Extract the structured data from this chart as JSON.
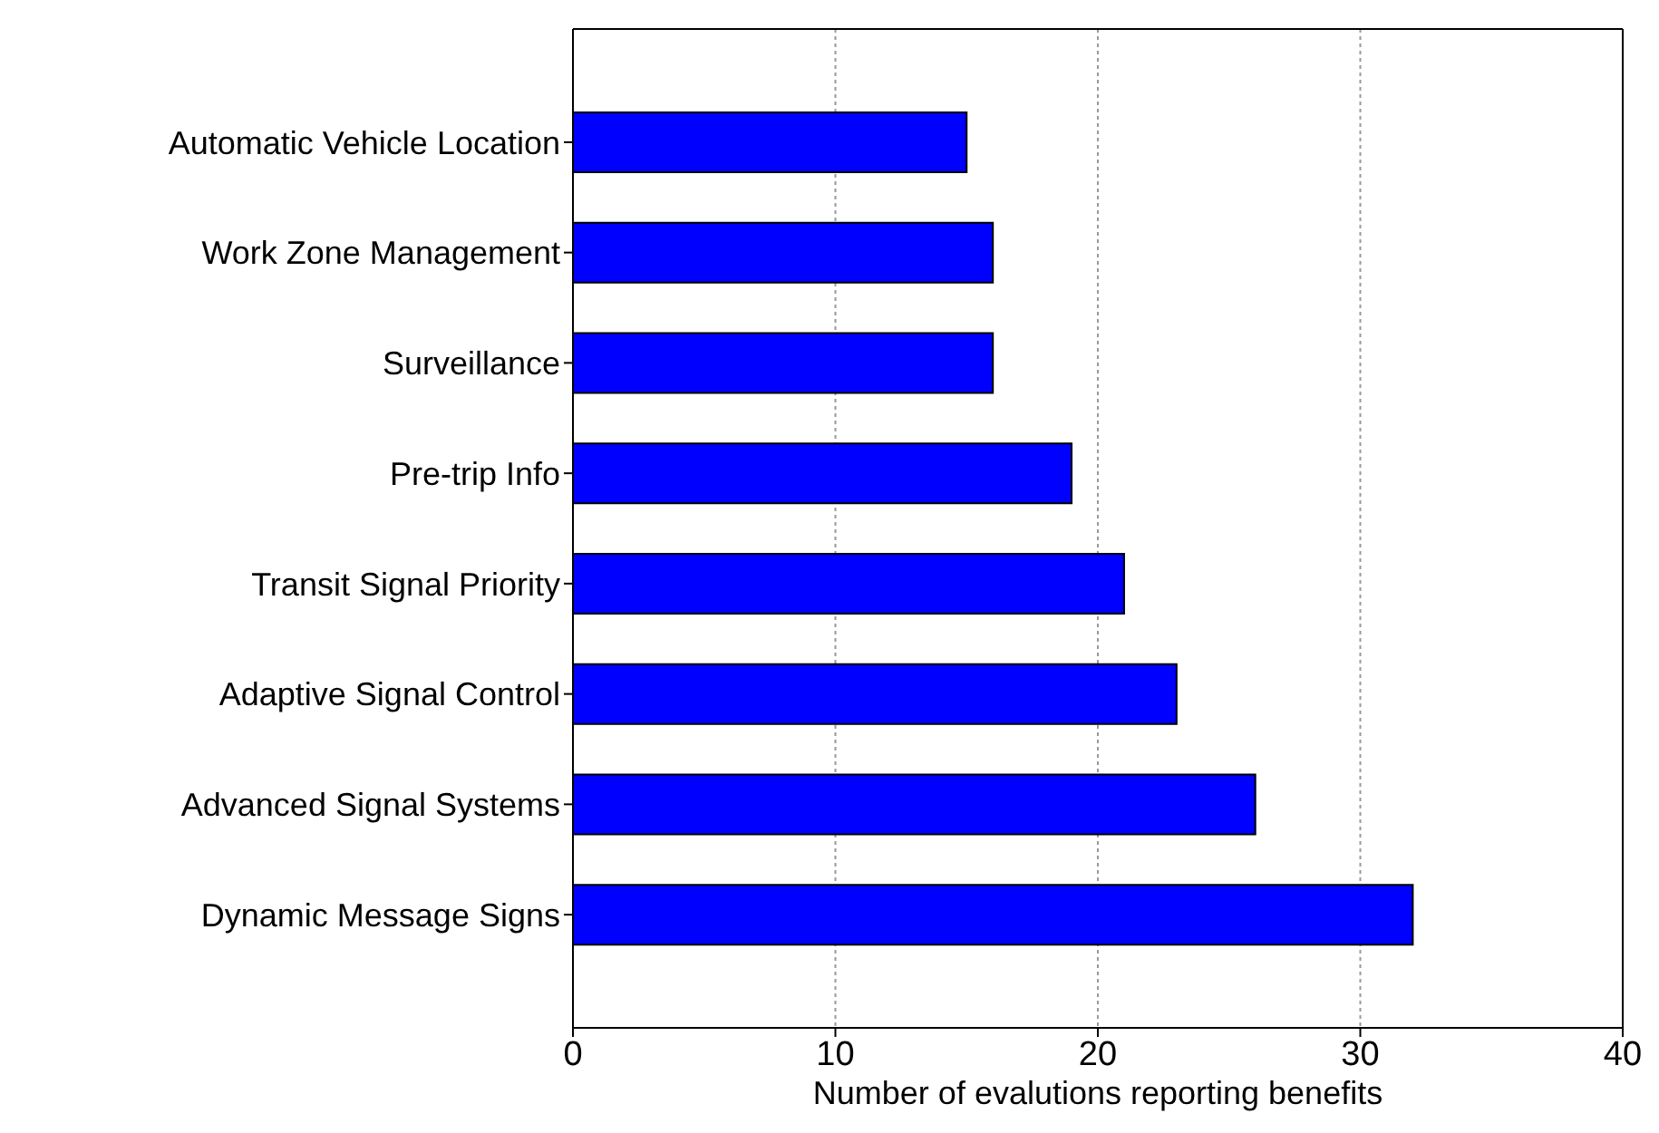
{
  "chart_data": {
    "type": "bar",
    "orientation": "horizontal",
    "xlabel": "Number of evalutions reporting benefits",
    "categories": [
      "Automatic Vehicle Location",
      "Work Zone Management",
      "Surveillance",
      "Pre-trip Info",
      "Transit Signal Priority",
      "Adaptive Signal Control",
      "Advanced Signal Systems",
      "Dynamic Message Signs"
    ],
    "values": [
      15,
      16,
      16,
      19,
      21,
      23,
      26,
      32
    ],
    "color": "#0000ff",
    "xlim": [
      0,
      40
    ],
    "xticks": [
      0,
      10,
      20,
      30,
      40
    ],
    "grid": "x"
  }
}
